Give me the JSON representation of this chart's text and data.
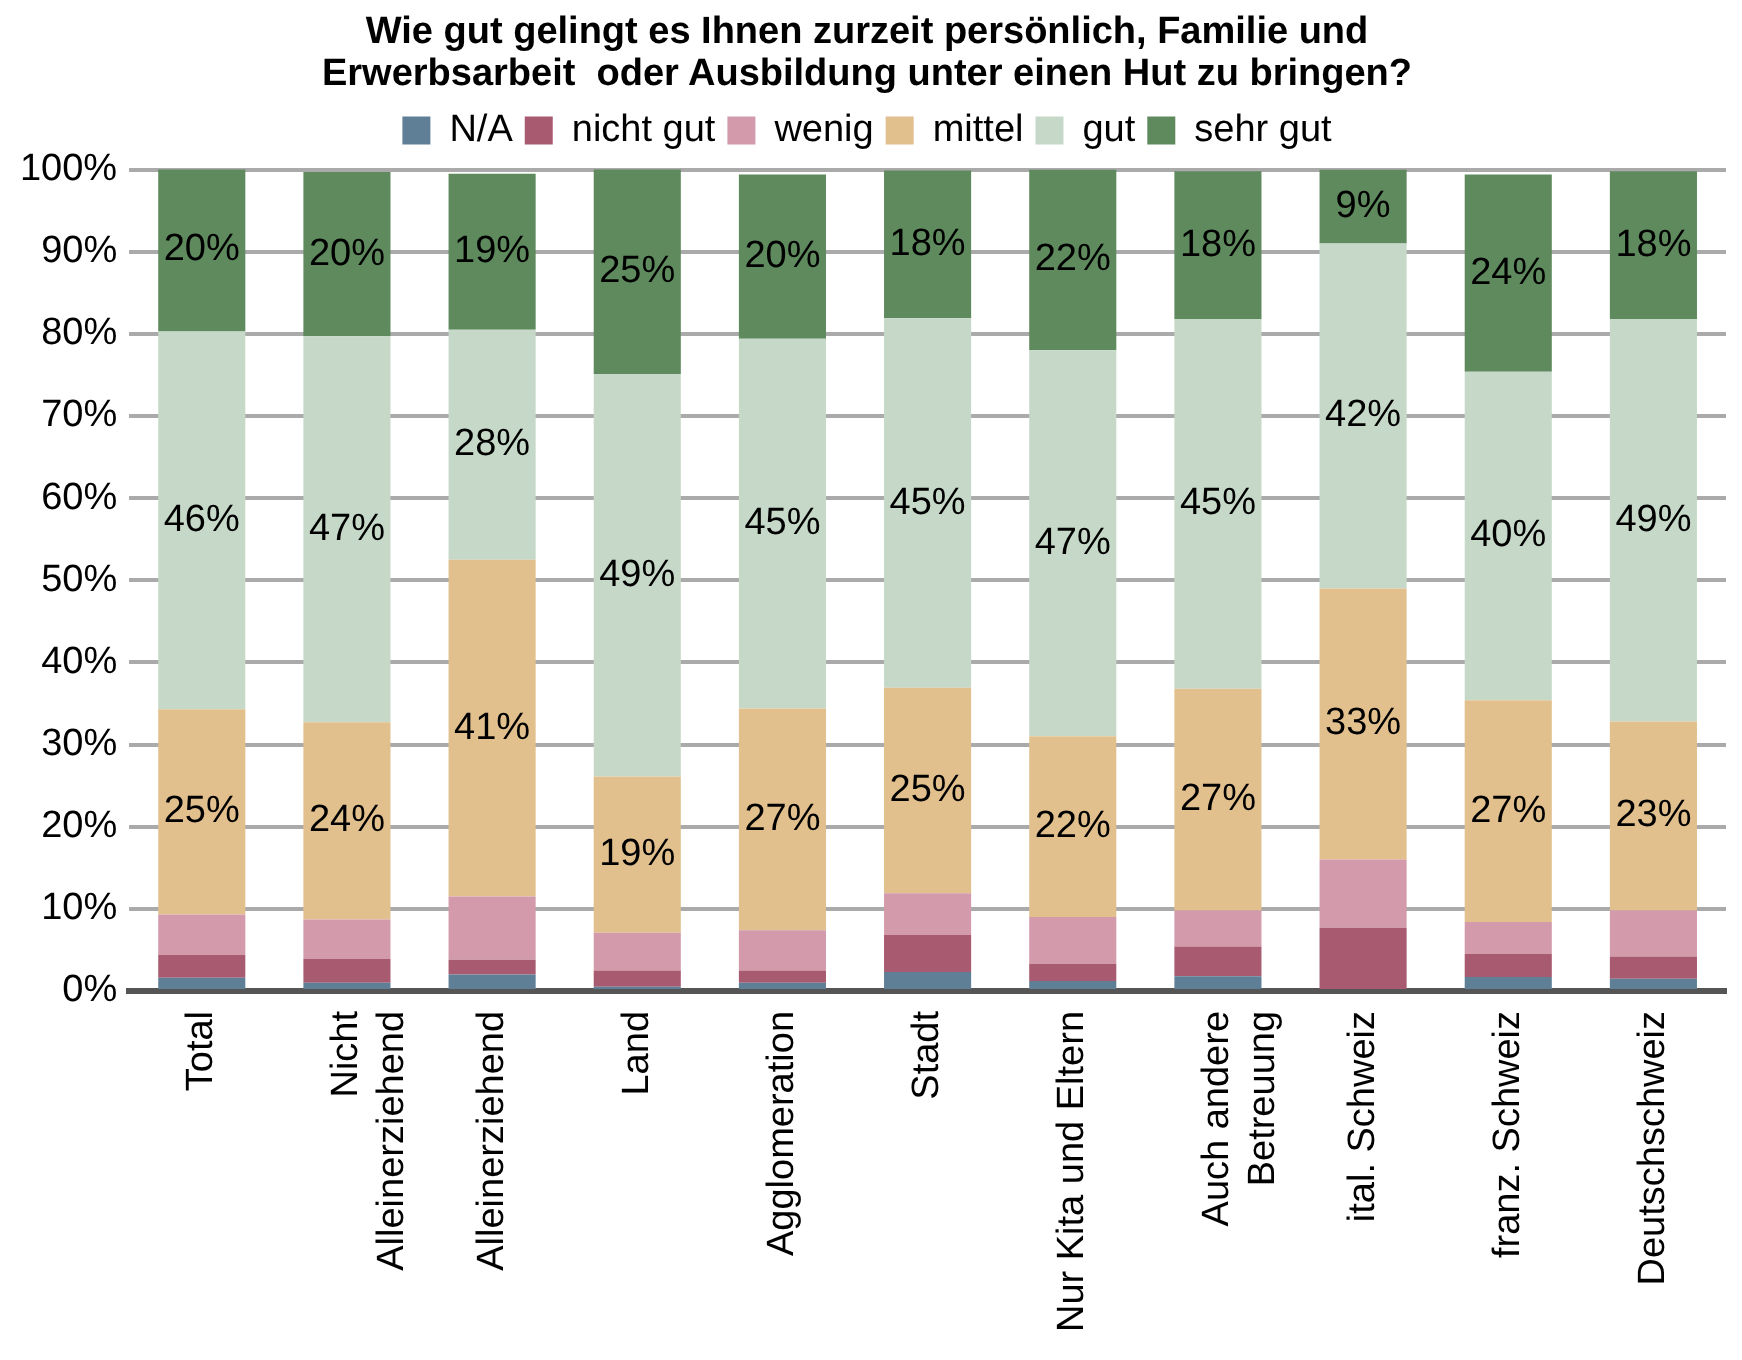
{
  "chart_data": {
    "type": "bar",
    "stacked": true,
    "title": "Wie gut gelingt es Ihnen zurzeit persönlich, Familie und\nErwerbsarbeit  oder Ausbildung unter einen Hut zu bringen?",
    "categories": [
      "Total",
      "Nicht\nAlleinerziehend",
      "Alleinerziehend",
      "Land",
      "Agglomeration",
      "Stadt",
      "Nur Kita und Eltern",
      "Auch andere\nBetreuung",
      "ital. Schweiz",
      "franz. Schweiz",
      "Deutschschweiz"
    ],
    "series": [
      {
        "name": "N/A",
        "color": "#5f7f96",
        "values": [
          1.6,
          1.0,
          2.0,
          0.5,
          1.0,
          2.3,
          1.2,
          1.8,
          0,
          1.7,
          1.5
        ]
      },
      {
        "name": "nicht gut",
        "color": "#a85a70",
        "values": [
          2.8,
          2.9,
          1.8,
          2.0,
          1.5,
          4.5,
          2.1,
          3.6,
          7.7,
          2.8,
          2.7
        ]
      },
      {
        "name": "wenig",
        "color": "#d29aab",
        "values": [
          4.9,
          4.8,
          7.7,
          4.6,
          4.9,
          5.1,
          5.7,
          4.4,
          8.3,
          3.9,
          5.6
        ]
      },
      {
        "name": "mittel",
        "color": "#e2c08e",
        "values": [
          25,
          24,
          41,
          19,
          27,
          25,
          22,
          27,
          33,
          27,
          23
        ],
        "value_labels": [
          "25%",
          "24%",
          "41%",
          "19%",
          "27%",
          "25%",
          "22%",
          "27%",
          "33%",
          "27%",
          "23%"
        ]
      },
      {
        "name": "gut",
        "color": "#c6d9c8",
        "values": [
          46,
          47,
          28,
          49,
          45,
          45,
          47,
          45,
          42,
          40,
          49
        ],
        "value_labels": [
          "46%",
          "47%",
          "28%",
          "49%",
          "45%",
          "45%",
          "47%",
          "45%",
          "42%",
          "40%",
          "49%"
        ]
      },
      {
        "name": "sehr gut",
        "color": "#5e8a5e",
        "values": [
          20,
          20,
          19,
          25,
          20,
          18,
          22,
          18,
          9,
          24,
          18
        ],
        "value_labels": [
          "20%",
          "20%",
          "19%",
          "25%",
          "20%",
          "18%",
          "22%",
          "18%",
          "9%",
          "24%",
          "18%"
        ]
      }
    ],
    "ylim": [
      0,
      100
    ],
    "yticks": [
      {
        "value": 0,
        "label": "0%"
      },
      {
        "value": 10,
        "label": "10%"
      },
      {
        "value": 20,
        "label": "20%"
      },
      {
        "value": 30,
        "label": "30%"
      },
      {
        "value": 40,
        "label": "40%"
      },
      {
        "value": 50,
        "label": "50%"
      },
      {
        "value": 60,
        "label": "60%"
      },
      {
        "value": 70,
        "label": "70%"
      },
      {
        "value": 80,
        "label": "80%"
      },
      {
        "value": 90,
        "label": "90%"
      },
      {
        "value": 100,
        "label": "100%"
      }
    ],
    "grid": "y",
    "legend": "top"
  }
}
